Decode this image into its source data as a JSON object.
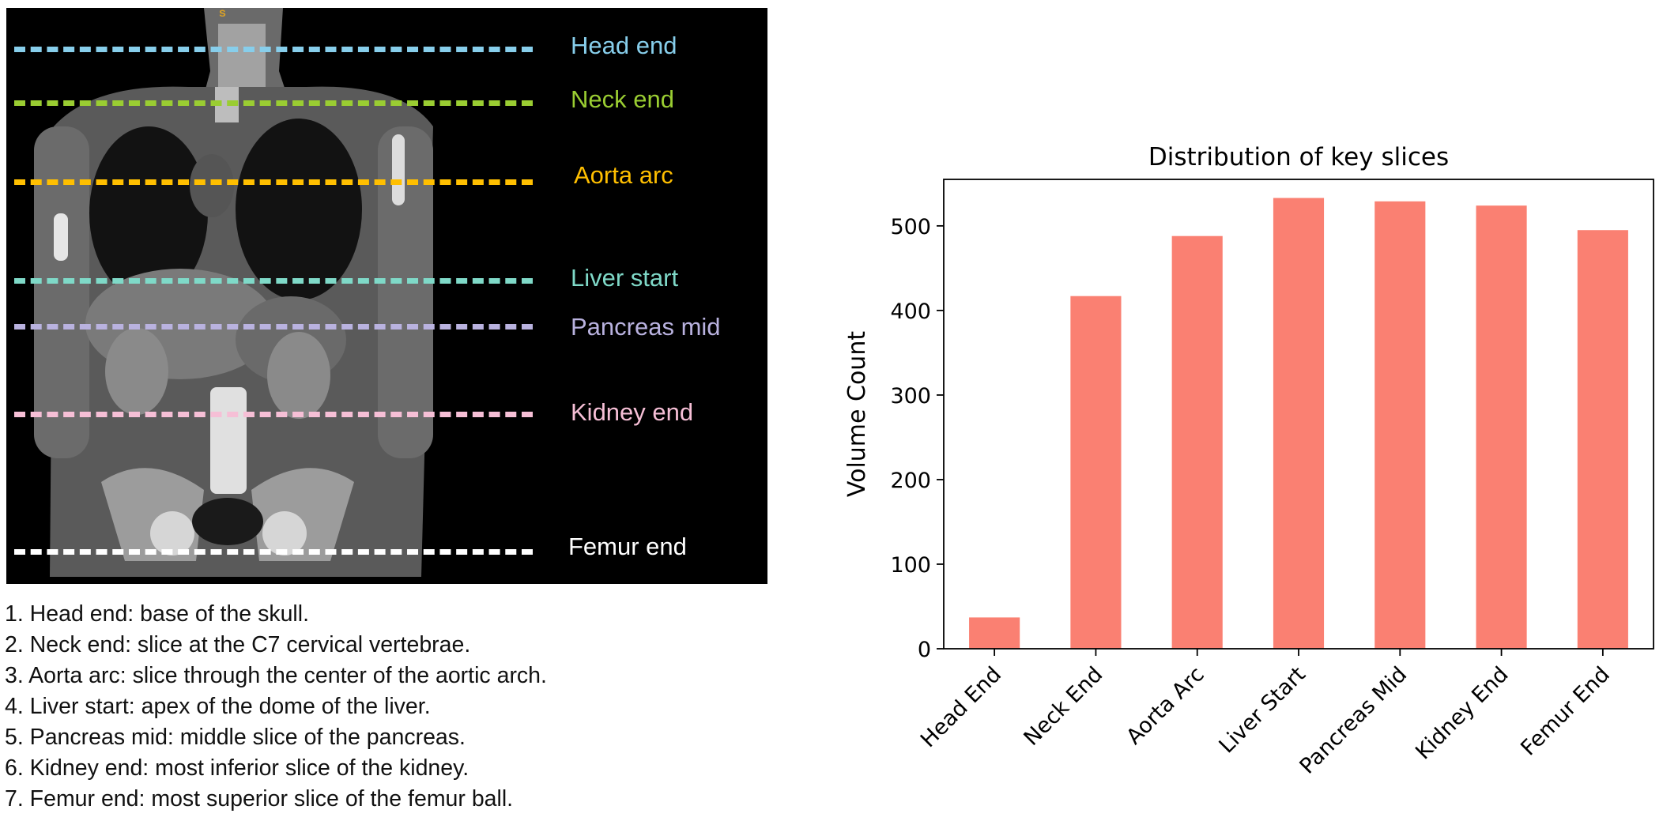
{
  "ct_panel": {
    "top_mark": "s",
    "landmarks": [
      {
        "label": "Head end",
        "color": "#87ceeb"
      },
      {
        "label": "Neck end",
        "color": "#9acd32"
      },
      {
        "label": "Aorta arc",
        "color": "#ffbf00"
      },
      {
        "label": "Liver start",
        "color": "#7fd9c8"
      },
      {
        "label": "Pancreas mid",
        "color": "#b9b2df"
      },
      {
        "label": "Kidney end",
        "color": "#f6bfd6"
      },
      {
        "label": "Femur end",
        "color": "#ffffff"
      }
    ]
  },
  "definitions": [
    "1. Head end: base of the skull.",
    "2. Neck end: slice at the C7 cervical vertebrae.",
    "3. Aorta arc: slice through the center of the aortic arch.",
    "4. Liver start: apex of the dome of the liver.",
    "5. Pancreas mid: middle slice of the pancreas.",
    "6. Kidney end: most inferior slice of the kidney.",
    "7. Femur end: most superior slice of the femur ball."
  ],
  "chart_data": {
    "type": "bar",
    "title": "Distribution of key slices",
    "xlabel": "",
    "ylabel": "Volume Count",
    "categories": [
      "Head End",
      "Neck End",
      "Aorta Arc",
      "Liver Start",
      "Pancreas Mid",
      "Kidney End",
      "Femur End"
    ],
    "values": [
      37,
      417,
      488,
      533,
      529,
      524,
      495
    ],
    "ylim": [
      0,
      555
    ],
    "yticks": [
      0,
      100,
      200,
      300,
      400,
      500
    ],
    "bar_color": "#fa8072",
    "grid": false,
    "legend": "none"
  }
}
